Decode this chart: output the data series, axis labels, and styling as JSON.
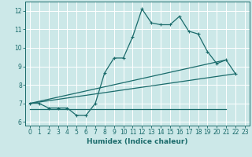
{
  "xlabel": "Humidex (Indice chaleur)",
  "bg_color": "#cce8e8",
  "grid_color": "#ffffff",
  "line_color": "#1a6b6b",
  "xlim": [
    -0.5,
    23.5
  ],
  "ylim": [
    5.8,
    12.5
  ],
  "xticks": [
    0,
    1,
    2,
    3,
    4,
    5,
    6,
    7,
    8,
    9,
    10,
    11,
    12,
    13,
    14,
    15,
    16,
    17,
    18,
    19,
    20,
    21,
    22,
    23
  ],
  "yticks": [
    6,
    7,
    8,
    9,
    10,
    11,
    12
  ],
  "line1_x": [
    0,
    1,
    2,
    3,
    4,
    5,
    6,
    7,
    8,
    9,
    10,
    11,
    12,
    13,
    14,
    15,
    16,
    17,
    18,
    19,
    20,
    21,
    22
  ],
  "line1_y": [
    7.0,
    7.0,
    6.75,
    6.75,
    6.75,
    6.35,
    6.35,
    7.0,
    8.65,
    9.45,
    9.45,
    10.6,
    12.1,
    11.35,
    11.25,
    11.25,
    11.7,
    10.9,
    10.75,
    9.8,
    9.15,
    9.35,
    8.6
  ],
  "line2_x": [
    0,
    21
  ],
  "line2_y": [
    7.0,
    9.35
  ],
  "line3_x": [
    0,
    22
  ],
  "line3_y": [
    7.0,
    8.6
  ],
  "line4_x": [
    0,
    21
  ],
  "line4_y": [
    6.7,
    6.7
  ]
}
